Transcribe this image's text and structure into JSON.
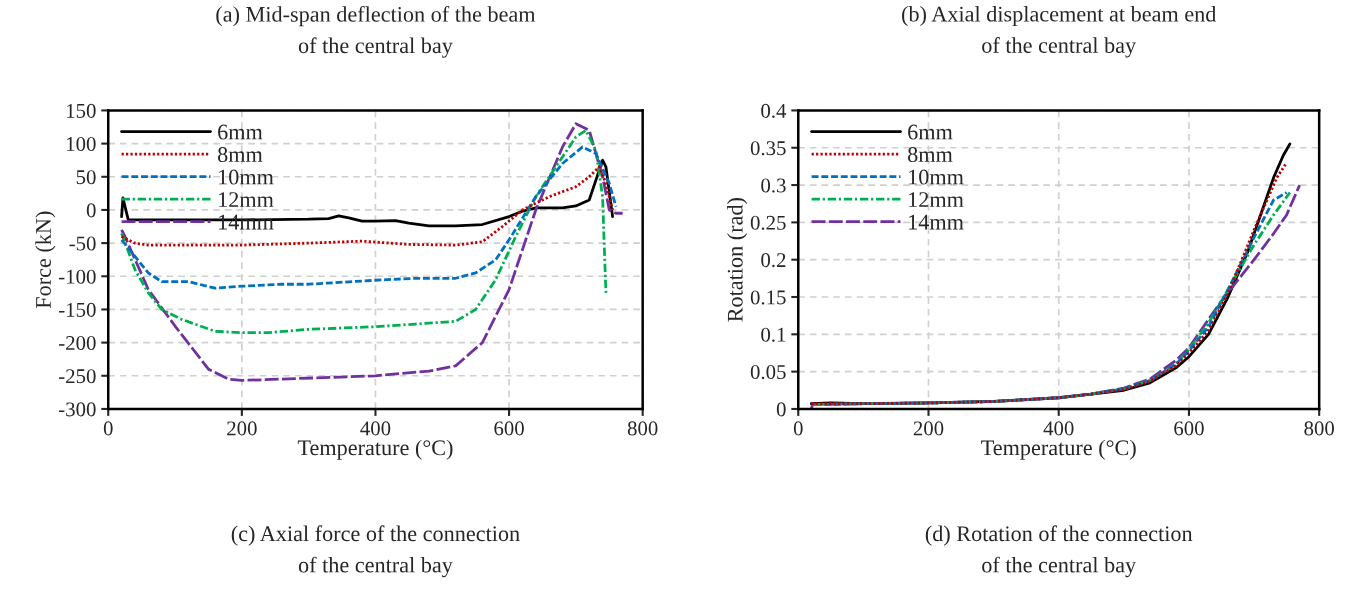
{
  "chart_data": [
    {
      "type": "line",
      "xlabel": "Temperature (°C)",
      "ylabel": "Force (kN)",
      "xlim": [
        0,
        800
      ],
      "xticks": [
        0,
        200,
        400,
        600,
        800
      ],
      "ylim": [
        -300,
        150
      ],
      "yticks": [
        -300,
        -250,
        -200,
        -150,
        -100,
        -50,
        0,
        50,
        100,
        150
      ],
      "grid": true,
      "legend": "top left",
      "annotations": [
        "(a) Mid-span deflection of the beam\nof the central bay",
        "(c) Axial force of the connection\nof the central bay"
      ],
      "series": [
        {
          "name": "6mm",
          "color": "#000000",
          "line_style": "solid",
          "x": [
            20,
            22,
            30,
            100,
            200,
            300,
            330,
            345,
            360,
            380,
            400,
            430,
            450,
            480,
            520,
            560,
            600,
            620,
            640,
            680,
            700,
            720,
            735,
            740,
            745,
            755
          ],
          "values": [
            -10,
            18,
            -15,
            -15,
            -15,
            -14,
            -13,
            -9,
            -12,
            -17,
            -17,
            -16,
            -20,
            -24,
            -24,
            -22,
            -10,
            -2,
            3,
            3,
            6,
            15,
            60,
            75,
            65,
            -10
          ]
        },
        {
          "name": "8mm",
          "color": "#c00000",
          "line_style": "dotted",
          "x": [
            20,
            40,
            60,
            100,
            200,
            300,
            380,
            450,
            520,
            560,
            590,
            620,
            660,
            700,
            720,
            735,
            745,
            755
          ],
          "values": [
            -40,
            -50,
            -53,
            -53,
            -53,
            -50,
            -47,
            -52,
            -53,
            -48,
            -25,
            0,
            20,
            35,
            50,
            65,
            40,
            0
          ]
        },
        {
          "name": "10mm",
          "color": "#0070c0",
          "line_style": "dashed",
          "x": [
            20,
            40,
            60,
            80,
            120,
            160,
            200,
            260,
            300,
            400,
            460,
            520,
            550,
            580,
            600,
            640,
            680,
            710,
            730,
            750,
            760
          ],
          "values": [
            -45,
            -70,
            -95,
            -108,
            -108,
            -118,
            -115,
            -112,
            -112,
            -106,
            -103,
            -103,
            -95,
            -75,
            -45,
            20,
            70,
            95,
            85,
            40,
            5
          ]
        },
        {
          "name": "12mm",
          "color": "#00b050",
          "line_style": "dashdot",
          "x": [
            20,
            40,
            60,
            80,
            110,
            160,
            200,
            240,
            300,
            400,
            460,
            520,
            550,
            580,
            610,
            640,
            680,
            700,
            715,
            730,
            740,
            742,
            745
          ],
          "values": [
            -35,
            -90,
            -125,
            -150,
            -165,
            -183,
            -185,
            -185,
            -180,
            -176,
            -172,
            -168,
            -150,
            -105,
            -40,
            20,
            80,
            110,
            120,
            90,
            20,
            -40,
            -125
          ]
        },
        {
          "name": "14mm",
          "color": "#7030a0",
          "line_style": "longdash",
          "x": [
            20,
            25,
            60,
            100,
            150,
            180,
            200,
            260,
            400,
            480,
            520,
            560,
            600,
            640,
            680,
            700,
            720,
            740,
            750,
            760,
            770
          ],
          "values": [
            -30,
            -40,
            -120,
            -175,
            -240,
            -255,
            -257,
            -255,
            -250,
            -243,
            -235,
            -200,
            -120,
            0,
            95,
            130,
            120,
            50,
            0,
            -5,
            -5
          ]
        }
      ]
    },
    {
      "type": "line",
      "xlabel": "Temperature (°C)",
      "ylabel": "Rotation (rad)",
      "xlim": [
        0,
        800
      ],
      "xticks": [
        0,
        200,
        400,
        600,
        800
      ],
      "ylim": [
        0,
        0.4
      ],
      "yticks": [
        0,
        0.05,
        0.1,
        0.15,
        0.2,
        0.25,
        0.3,
        0.35,
        0.4
      ],
      "grid": true,
      "legend": "top left",
      "annotations": [
        "(b) Axial displacement at beam end\nof the central bay",
        "(d) Rotation of the connection\nof the central bay"
      ],
      "series": [
        {
          "name": "6mm",
          "color": "#000000",
          "line_style": "solid",
          "x": [
            20,
            50,
            100,
            200,
            300,
            400,
            450,
            500,
            540,
            580,
            600,
            630,
            660,
            690,
            710,
            730,
            745,
            755
          ],
          "values": [
            0.007,
            0.008,
            0.007,
            0.008,
            0.01,
            0.015,
            0.02,
            0.025,
            0.035,
            0.055,
            0.07,
            0.1,
            0.15,
            0.21,
            0.26,
            0.31,
            0.34,
            0.355
          ]
        },
        {
          "name": "8mm",
          "color": "#c00000",
          "line_style": "dotted",
          "x": [
            20,
            100,
            200,
            300,
            400,
            450,
            500,
            540,
            580,
            600,
            630,
            660,
            700,
            720,
            735,
            750
          ],
          "values": [
            0.007,
            0.007,
            0.008,
            0.01,
            0.015,
            0.02,
            0.026,
            0.037,
            0.058,
            0.075,
            0.105,
            0.155,
            0.24,
            0.28,
            0.31,
            0.33
          ]
        },
        {
          "name": "10mm",
          "color": "#0070c0",
          "line_style": "dashed",
          "x": [
            40,
            100,
            200,
            300,
            400,
            450,
            500,
            540,
            580,
            600,
            630,
            660,
            700,
            730,
            750
          ],
          "values": [
            0.006,
            0.007,
            0.008,
            0.01,
            0.015,
            0.02,
            0.027,
            0.038,
            0.06,
            0.078,
            0.11,
            0.16,
            0.23,
            0.28,
            0.29
          ]
        },
        {
          "name": "12mm",
          "color": "#00b050",
          "line_style": "dashdot",
          "x": [
            30,
            100,
            200,
            300,
            400,
            450,
            500,
            540,
            580,
            600,
            630,
            660,
            700,
            730,
            755
          ],
          "values": [
            0.006,
            0.007,
            0.008,
            0.01,
            0.015,
            0.02,
            0.027,
            0.038,
            0.06,
            0.08,
            0.115,
            0.16,
            0.22,
            0.26,
            0.29
          ]
        },
        {
          "name": "14mm",
          "color": "#7030a0",
          "line_style": "longdash",
          "x": [
            20,
            22,
            100,
            200,
            300,
            400,
            450,
            500,
            540,
            580,
            600,
            650,
            700,
            730,
            750,
            770
          ],
          "values": [
            0,
            0.006,
            0.007,
            0.008,
            0.01,
            0.015,
            0.02,
            0.028,
            0.04,
            0.065,
            0.082,
            0.145,
            0.2,
            0.235,
            0.26,
            0.3
          ]
        }
      ]
    }
  ]
}
